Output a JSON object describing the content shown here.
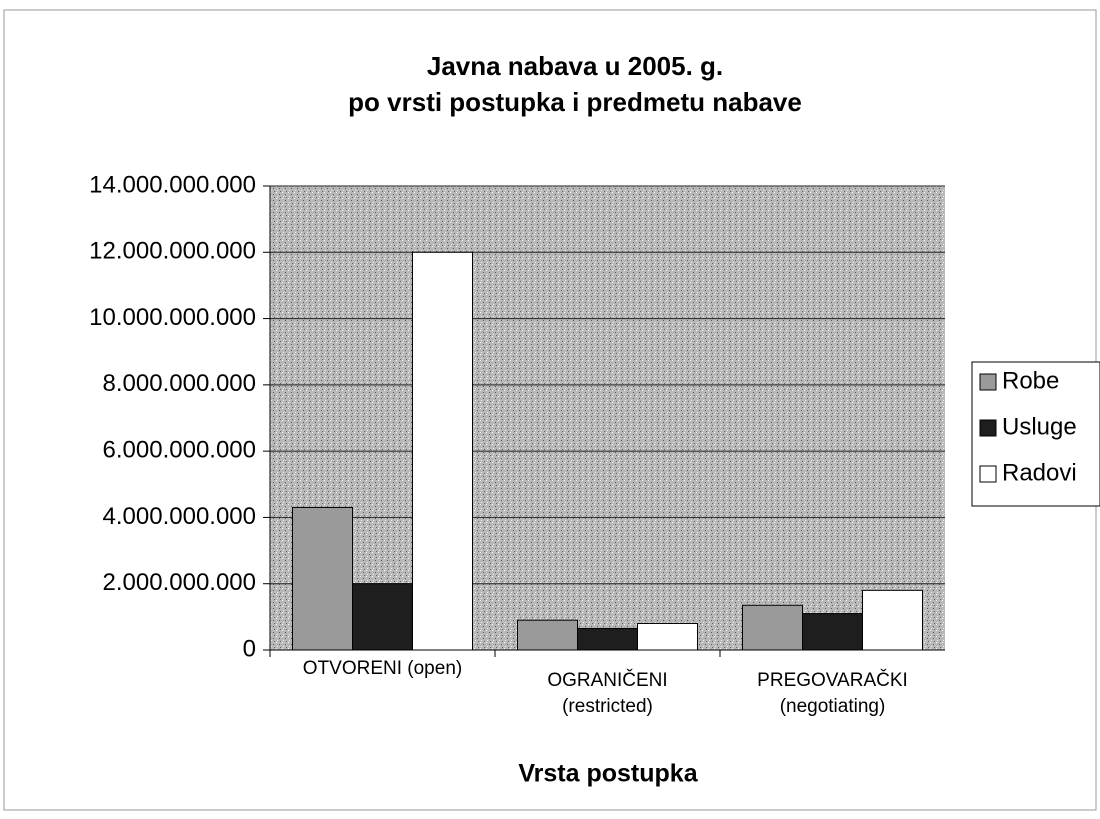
{
  "chart_data": {
    "type": "bar",
    "title": [
      "Javna nabava u 2005. g.",
      "po vrsti postupka i predmetu nabave"
    ],
    "x_label": "Vrsta postupka",
    "categories": [
      "OTVORENI (open)",
      "OGRANIČENI (restricted)",
      "PREGOVARAČKI (negotiating)"
    ],
    "series": [
      {
        "name": "Robe",
        "color": "#9a9a9a",
        "values": [
          4300000000,
          900000000,
          1350000000
        ]
      },
      {
        "name": "Usluge",
        "color": "#1e1e1e",
        "values": [
          2000000000,
          650000000,
          1100000000
        ]
      },
      {
        "name": "Radovi",
        "color": "#ffffff",
        "values": [
          12000000000,
          800000000,
          1800000000
        ]
      }
    ],
    "ylim": [
      0,
      14000000000
    ],
    "yticks": [
      0,
      {
        "value": 2000000000,
        "label": "2.000.000.000"
      },
      {
        "value": 4000000000,
        "label": "4.000.000.000"
      },
      {
        "value": 6000000000,
        "label": "6.000.000.000"
      },
      {
        "value": 8000000000,
        "label": "8.000.000.000"
      },
      {
        "value": 10000000000,
        "label": "10.000.000.000"
      },
      {
        "value": 12000000000,
        "label": "12.000.000.000"
      },
      {
        "value": 14000000000,
        "label": "14.000.000.000"
      }
    ],
    "grid": true
  }
}
